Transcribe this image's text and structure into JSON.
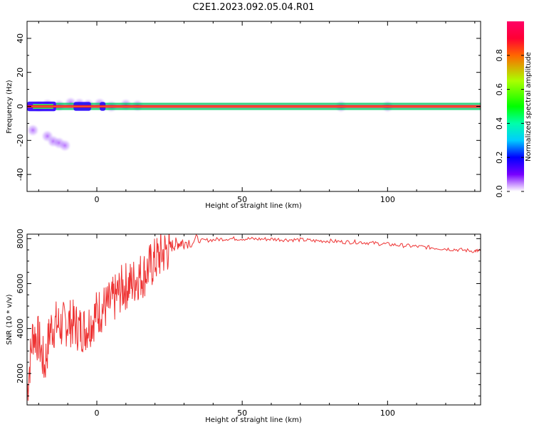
{
  "title": "C2E1.2023.092.05.04.R01",
  "chart_data": [
    {
      "type": "heatmap",
      "xlabel": "Height of straight line (km)",
      "ylabel": "Frequency (Hz)",
      "xlim": [
        -24,
        132
      ],
      "ylim": [
        -50,
        50
      ],
      "xticks": [
        0,
        50,
        100
      ],
      "yticks": [
        -40,
        -20,
        0,
        20,
        40
      ],
      "colorbar": {
        "label": "Normalized spectral amplitude",
        "range": [
          0,
          1
        ],
        "ticks": [
          "0.0",
          "0.2",
          "0.4",
          "0.6",
          "0.8"
        ]
      },
      "features": [
        {
          "kind": "dominant_band",
          "frequency": 0,
          "x_from": -24,
          "x_to": 132,
          "amplitude": 1.0
        },
        {
          "kind": "sideband",
          "frequency": 1.5,
          "x_from": -14,
          "x_to": 132,
          "amplitude": 0.45
        },
        {
          "kind": "sideband",
          "frequency": -1.5,
          "x_from": -14,
          "x_to": 132,
          "amplitude": 0.45
        }
      ]
    },
    {
      "type": "line",
      "xlabel": "Height of straight line (km)",
      "ylabel": "SNR (10 * v/v)",
      "xlim": [
        -24,
        132
      ],
      "ylim": [
        600,
        8200
      ],
      "xticks": [
        0,
        50,
        100
      ],
      "yticks": [
        2000,
        4000,
        6000,
        8000
      ],
      "series": [
        {
          "color": "#ee3333",
          "x": [
            -24,
            -22,
            -20,
            -18,
            -16,
            -14,
            -12,
            -10,
            -8,
            -6,
            -4,
            -2,
            0,
            2,
            4,
            6,
            8,
            10,
            12,
            14,
            16,
            18,
            20,
            22,
            24,
            26,
            28,
            30,
            35,
            40,
            45,
            50,
            55,
            60,
            65,
            70,
            75,
            80,
            85,
            90,
            95,
            100,
            105,
            110,
            115,
            120,
            125,
            130,
            132
          ],
          "values": [
            1200,
            3800,
            3500,
            2300,
            4000,
            4200,
            4100,
            4300,
            4200,
            4000,
            4000,
            4300,
            4700,
            4900,
            5000,
            5300,
            5700,
            5900,
            6000,
            6300,
            6400,
            6700,
            7000,
            7300,
            7500,
            7700,
            7800,
            7850,
            7900,
            7950,
            8000,
            8000,
            7980,
            7980,
            7950,
            7950,
            7900,
            7900,
            7850,
            7850,
            7800,
            7750,
            7700,
            7650,
            7600,
            7550,
            7500,
            7450,
            7450
          ]
        }
      ]
    }
  ]
}
